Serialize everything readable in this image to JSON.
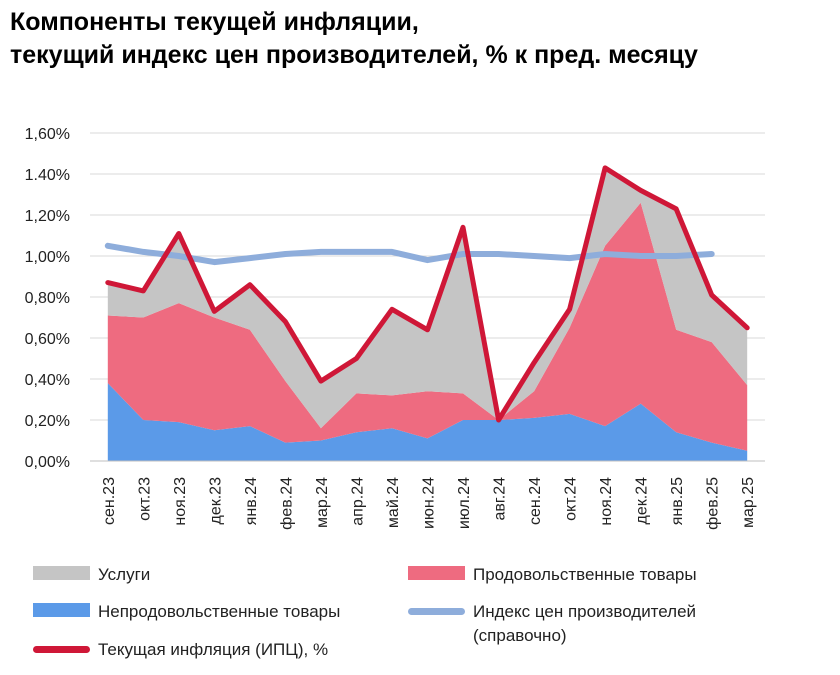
{
  "title": {
    "line1": "Компоненты текущей инфляции,",
    "line2": "текущий индекс цен производителей, % к пред. месяцу"
  },
  "colors": {
    "services": "#c5c5c5",
    "food": "#ee6b80",
    "nonfood": "#5b9ae8",
    "ppi": "#8eaddb",
    "cpi": "#cf1737",
    "grid": "#d9d9d9"
  },
  "legend": {
    "services": "Услуги",
    "food": "Продовольственные товары",
    "nonfood": "Непродовольственные товары",
    "ppi_line1": "Индекс цен производителей",
    "ppi_line2": "(справочно)",
    "cpi": "Текущая инфляция (ИПЦ), %"
  },
  "chart_data": {
    "type": "area",
    "stacked": true,
    "title": "Компоненты текущей инфляции, текущий индекс цен производителей, % к пред. месяцу",
    "categories": [
      "сен.23",
      "окт.23",
      "ноя.23",
      "дек.23",
      "янв.24",
      "фев.24",
      "мар.24",
      "апр.24",
      "май.24",
      "июн.24",
      "июл.24",
      "авг.24",
      "сен.24",
      "окт.24",
      "ноя.24",
      "дек.24",
      "янв.25",
      "фев.25",
      "мар.25"
    ],
    "y_ticks": [
      "0,00%",
      "0,20%",
      "0,40%",
      "0,60%",
      "0,80%",
      "1,00%",
      "1,20%",
      "1.40%",
      "1,60%"
    ],
    "ylim": [
      0,
      1.6
    ],
    "grid": true,
    "legend_position": "bottom",
    "series": [
      {
        "name": "Непродовольственные товары",
        "type": "area",
        "values": [
          0.38,
          0.2,
          0.19,
          0.15,
          0.17,
          0.09,
          0.1,
          0.14,
          0.16,
          0.11,
          0.2,
          0.2,
          0.21,
          0.23,
          0.17,
          0.28,
          0.14,
          0.09,
          0.05
        ]
      },
      {
        "name": "Продовольственные товары",
        "type": "area",
        "values": [
          0.33,
          0.5,
          0.58,
          0.55,
          0.47,
          0.3,
          0.06,
          0.19,
          0.16,
          0.23,
          0.13,
          0.0,
          0.13,
          0.42,
          0.88,
          0.98,
          0.5,
          0.49,
          0.32
        ]
      },
      {
        "name": "Услуги",
        "type": "area",
        "values": [
          0.16,
          0.13,
          0.34,
          0.03,
          0.22,
          0.29,
          0.23,
          0.17,
          0.42,
          0.3,
          0.81,
          0.0,
          0.14,
          0.09,
          0.38,
          0.06,
          0.59,
          0.23,
          0.28
        ]
      },
      {
        "name": "Индекс цен производителей (справочно)",
        "type": "line",
        "values": [
          1.05,
          1.02,
          1.0,
          0.97,
          0.99,
          1.01,
          1.02,
          1.02,
          1.02,
          0.98,
          1.01,
          1.01,
          1.0,
          0.99,
          1.01,
          1.0,
          1.0,
          1.01,
          null
        ]
      },
      {
        "name": "Текущая инфляция (ИПЦ), %",
        "type": "line",
        "values": [
          0.87,
          0.83,
          1.11,
          0.73,
          0.86,
          0.68,
          0.39,
          0.5,
          0.74,
          0.64,
          1.14,
          0.2,
          0.48,
          0.74,
          1.43,
          1.32,
          1.23,
          0.81,
          0.65
        ]
      }
    ]
  }
}
